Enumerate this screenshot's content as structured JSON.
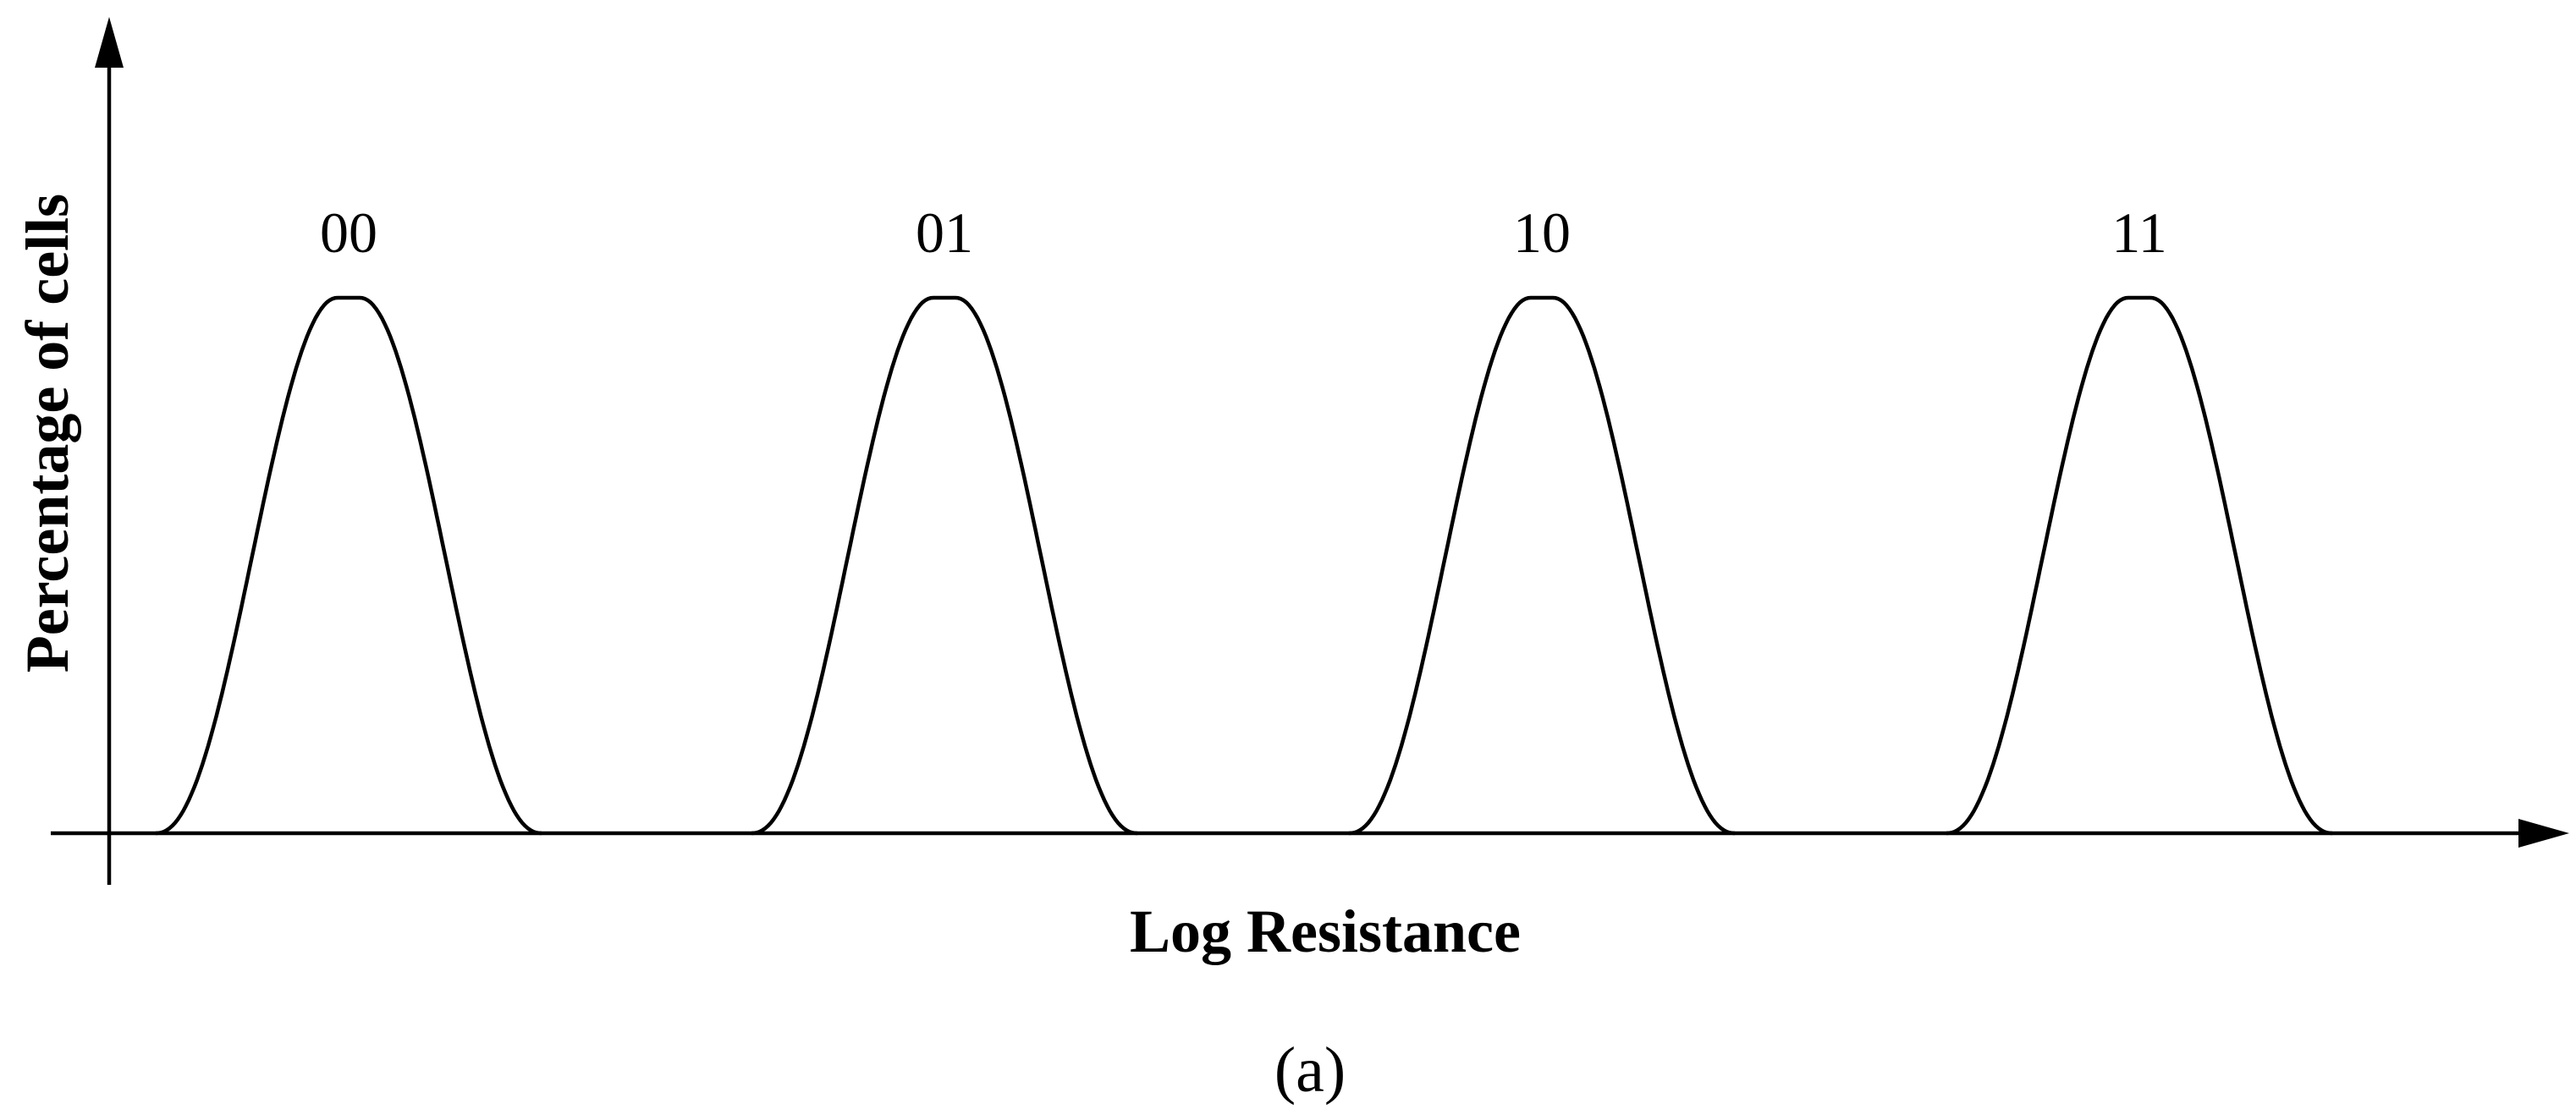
{
  "figure": {
    "y_axis_label": "Percentage of cells",
    "x_axis_label": "Log Resistance",
    "caption": "(a)"
  },
  "states": [
    {
      "label": "00"
    },
    {
      "label": "01"
    },
    {
      "label": "10"
    },
    {
      "label": "11"
    }
  ],
  "colors": {
    "stroke": "#000000",
    "background": "#ffffff"
  }
}
